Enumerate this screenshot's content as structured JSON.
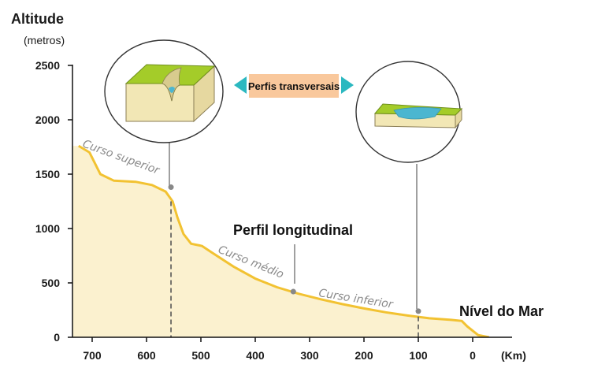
{
  "axes": {
    "y_title": "Altitude",
    "y_unit": "(metros)",
    "x_unit": "(Km)",
    "y_ticks": [
      "2500",
      "2000",
      "1500",
      "1000",
      "500",
      "0"
    ],
    "x_ticks": [
      "700",
      "600",
      "500",
      "400",
      "300",
      "200",
      "100",
      "0"
    ]
  },
  "labels": {
    "upper_course": "Curso superior",
    "middle_course": "Curso médio",
    "lower_course": "Curso inferior",
    "longitudinal_profile": "Perfil longitudinal",
    "sea_level": "Nível do Mar",
    "cross_profiles": "Perfis transversais"
  },
  "colors": {
    "profile_line": "#f2c232",
    "profile_fill": "#fbf1cf",
    "callout_box": "#f9c89c",
    "arrow": "#2bb8c0",
    "grass": "#a4cc29",
    "soil": "#f2e7b5",
    "water": "#4bb6d0"
  },
  "profile": {
    "points_km_m": [
      [
        725,
        1760
      ],
      [
        705,
        1700
      ],
      [
        685,
        1500
      ],
      [
        660,
        1440
      ],
      [
        620,
        1430
      ],
      [
        590,
        1400
      ],
      [
        565,
        1340
      ],
      [
        552,
        1250
      ],
      [
        543,
        1100
      ],
      [
        532,
        950
      ],
      [
        518,
        860
      ],
      [
        498,
        840
      ],
      [
        480,
        780
      ],
      [
        440,
        650
      ],
      [
        400,
        540
      ],
      [
        360,
        460
      ],
      [
        320,
        400
      ],
      [
        280,
        350
      ],
      [
        240,
        305
      ],
      [
        200,
        265
      ],
      [
        160,
        230
      ],
      [
        120,
        200
      ],
      [
        80,
        175
      ],
      [
        40,
        160
      ],
      [
        20,
        150
      ],
      [
        10,
        100
      ],
      [
        -10,
        20
      ],
      [
        -30,
        0
      ]
    ]
  },
  "markers": [
    {
      "km": 555,
      "m": 1380
    },
    {
      "km": 330,
      "m": 420
    },
    {
      "km": 100,
      "m": 240
    }
  ]
}
